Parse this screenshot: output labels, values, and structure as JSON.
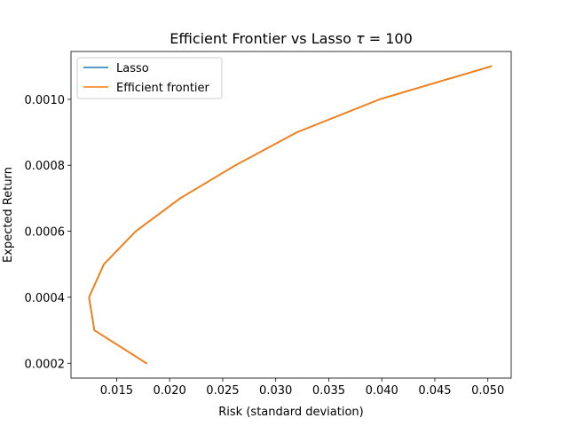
{
  "chart_data": {
    "type": "line",
    "title_prefix": "Efficient Frontier vs Lasso ",
    "title_tau": "τ",
    "title_eq": " = 100",
    "xlabel": "Risk (standard deviation)",
    "ylabel": "Expected Return",
    "xlim": [
      0.0107,
      0.0522
    ],
    "ylim": [
      0.000155,
      0.001145
    ],
    "xticks": [
      0.015,
      0.02,
      0.025,
      0.03,
      0.035,
      0.04,
      0.045,
      0.05
    ],
    "xtick_labels": [
      "0.015",
      "0.020",
      "0.025",
      "0.030",
      "0.035",
      "0.040",
      "0.045",
      "0.050"
    ],
    "yticks": [
      0.0002,
      0.0004,
      0.0006,
      0.0008,
      0.001
    ],
    "ytick_labels": [
      "0.0002",
      "0.0004",
      "0.0006",
      "0.0008",
      "0.0010"
    ],
    "grid": false,
    "legend_position": "top-left",
    "series": [
      {
        "name": "Lasso",
        "color": "#1f77b4",
        "x": [
          0.0178,
          0.0129,
          0.0124,
          0.0138,
          0.0168,
          0.021,
          0.0262,
          0.032,
          0.0398,
          0.0503
        ],
        "y": [
          0.0002,
          0.0003,
          0.0004,
          0.0005,
          0.0006,
          0.0007,
          0.0008,
          0.0009,
          0.001,
          0.0011
        ]
      },
      {
        "name": "Efficient frontier",
        "color": "#ff7f0e",
        "x": [
          0.0178,
          0.0129,
          0.0124,
          0.0138,
          0.0168,
          0.021,
          0.0262,
          0.032,
          0.0398,
          0.0503
        ],
        "y": [
          0.0002,
          0.0003,
          0.0004,
          0.0005,
          0.0006,
          0.0007,
          0.0008,
          0.0009,
          0.001,
          0.0011
        ]
      }
    ]
  }
}
